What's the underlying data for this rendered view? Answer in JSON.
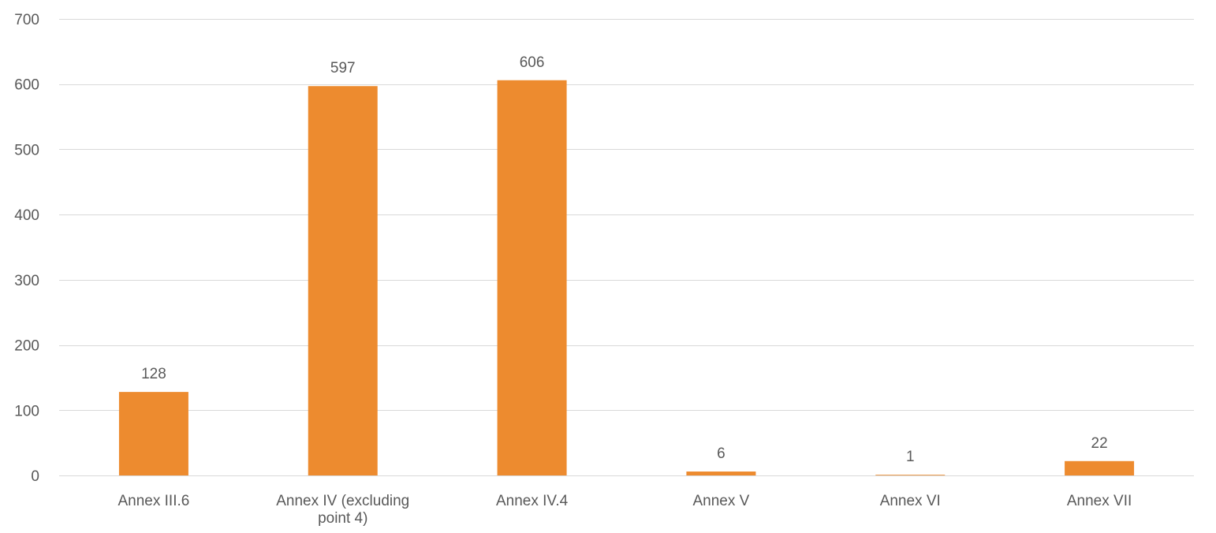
{
  "chart_data": {
    "type": "bar",
    "categories": [
      "Annex III.6",
      "Annex IV (excluding point 4)",
      "Annex IV.4",
      "Annex V",
      "Annex VI",
      "Annex VII"
    ],
    "category_label_lines": [
      [
        "Annex III.6"
      ],
      [
        "Annex IV (excluding",
        "point 4)"
      ],
      [
        "Annex IV.4"
      ],
      [
        "Annex V"
      ],
      [
        "Annex VI"
      ],
      [
        "Annex VII"
      ]
    ],
    "values": [
      128,
      597,
      606,
      6,
      1,
      22
    ],
    "data_labels": [
      "128",
      "597",
      "606",
      "6",
      "1",
      "22"
    ],
    "yticks": [
      0,
      100,
      200,
      300,
      400,
      500,
      600,
      700
    ],
    "ytick_labels": [
      "0",
      "100",
      "200",
      "300",
      "400",
      "500",
      "600",
      "700"
    ],
    "ylim": [
      0,
      700
    ],
    "grid": true,
    "legend": "none",
    "bar_color": "#ED8B2F",
    "title": "",
    "xlabel": "",
    "ylabel": ""
  }
}
